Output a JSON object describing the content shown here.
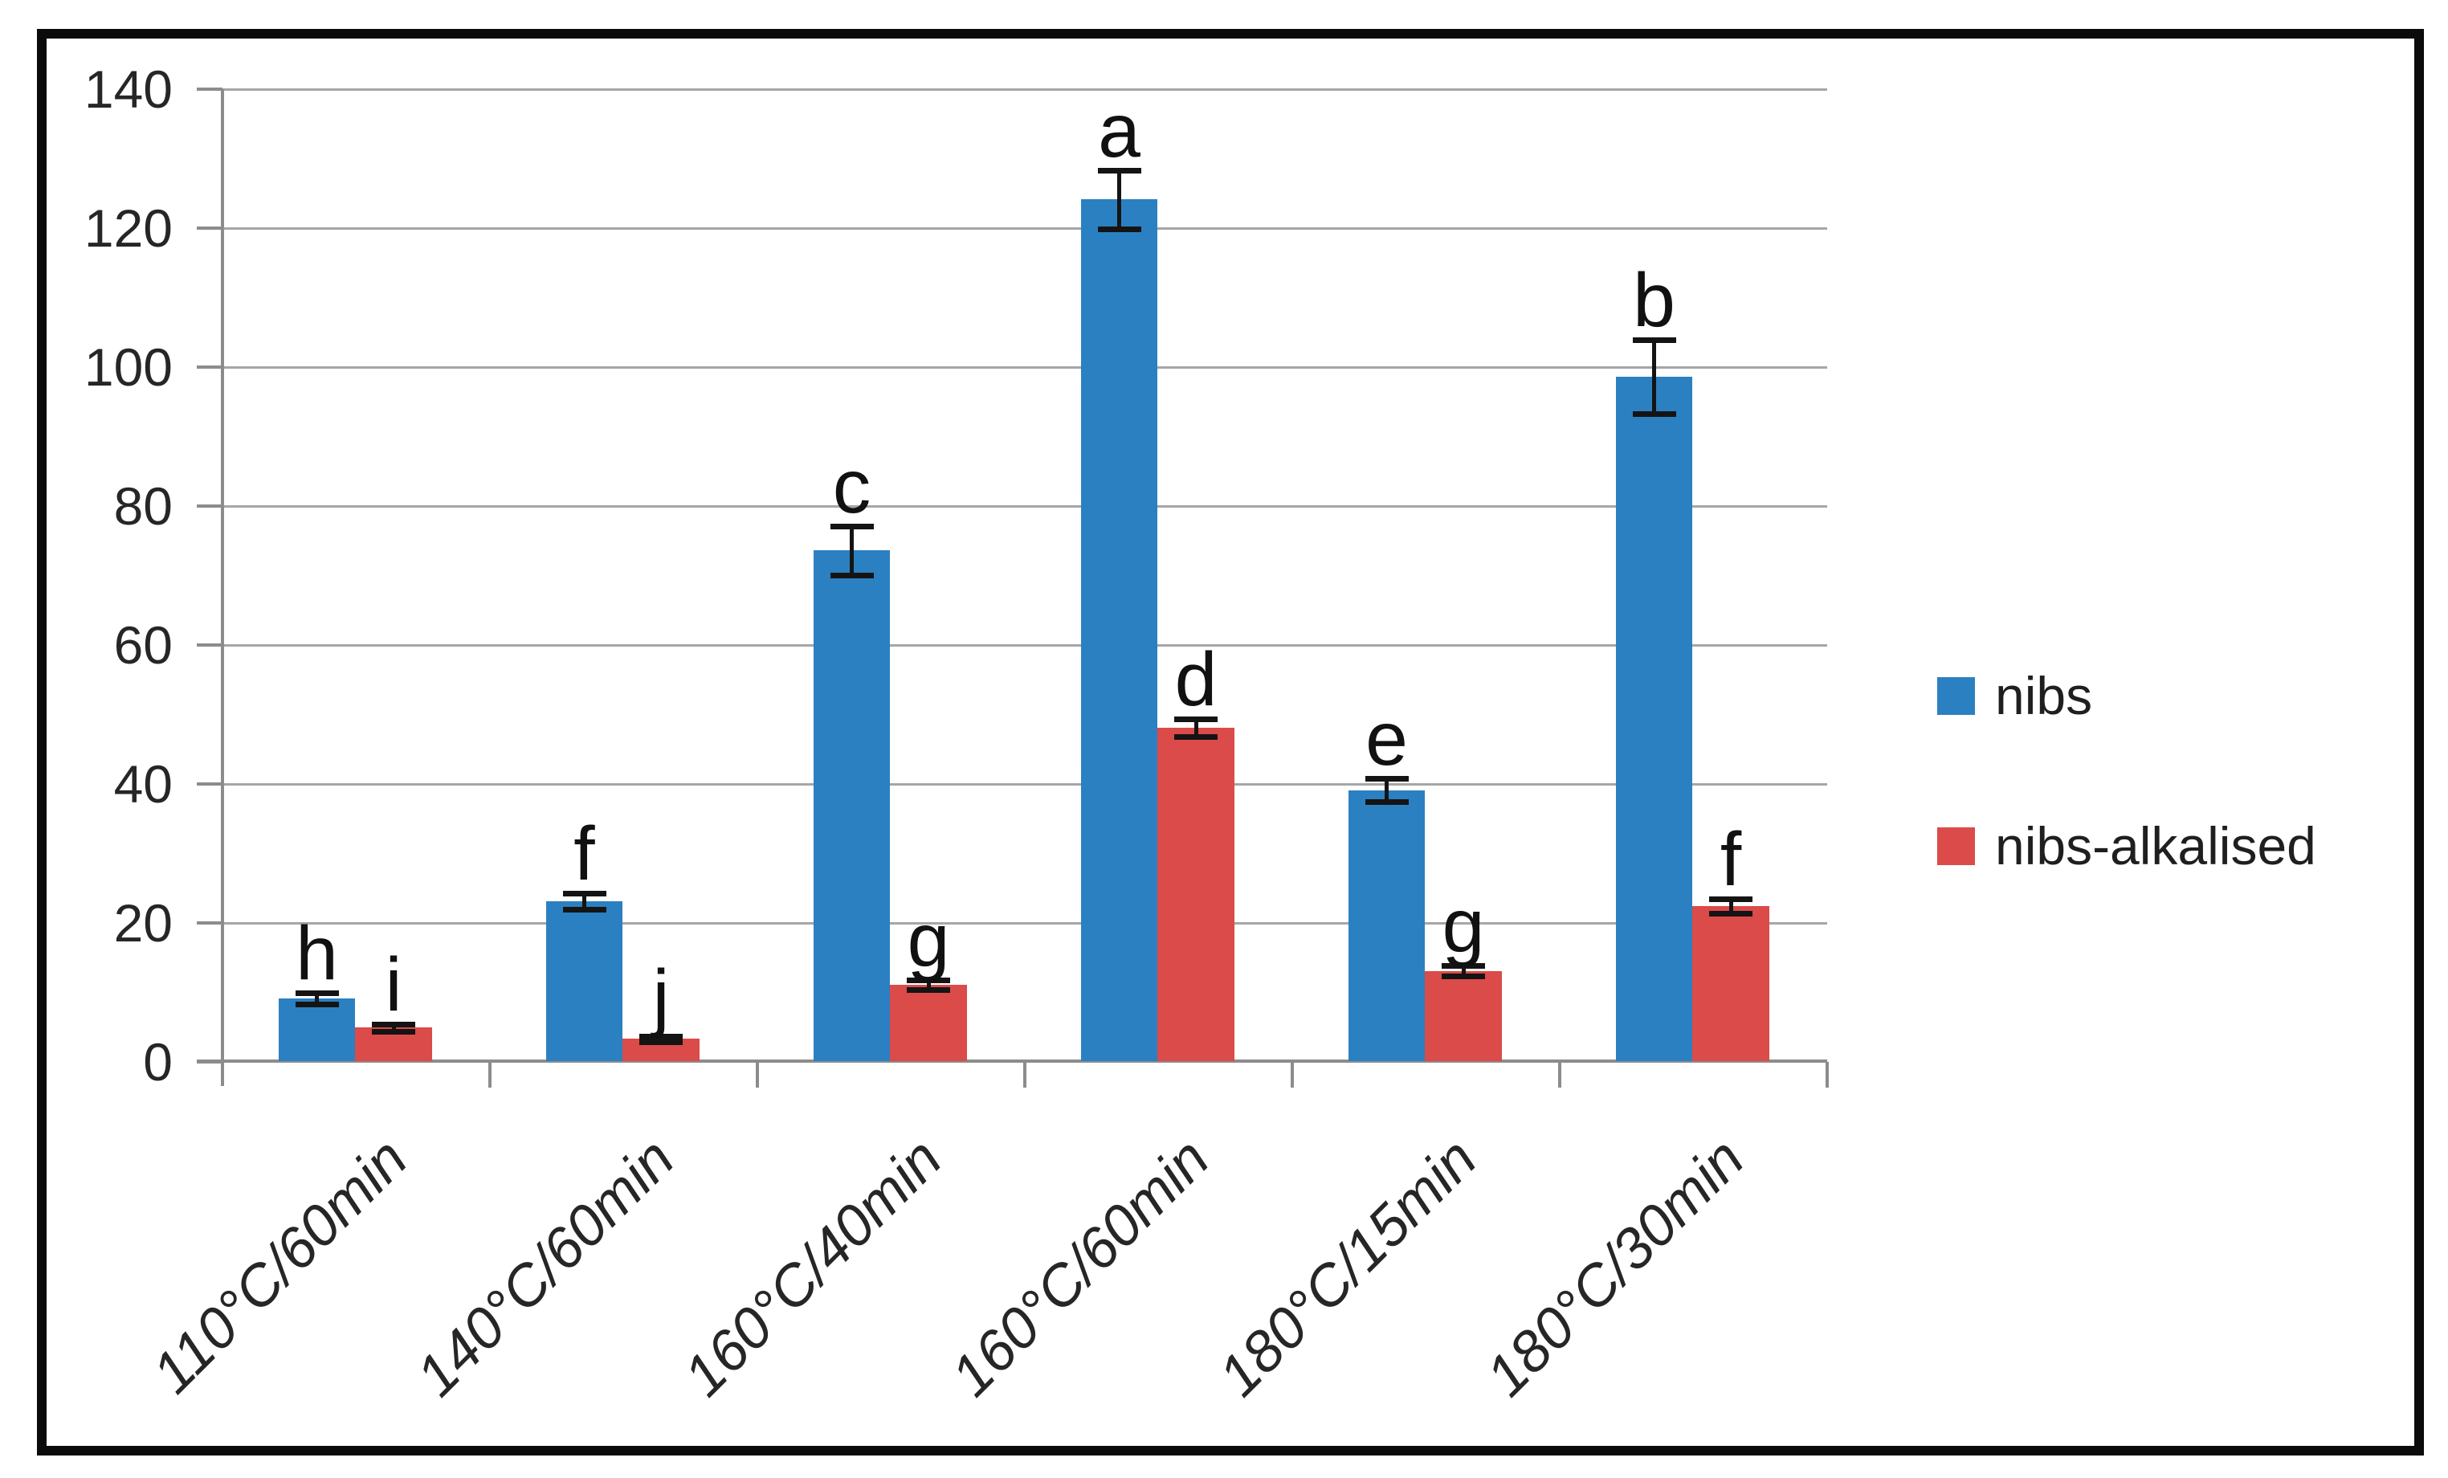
{
  "chart_data": {
    "type": "bar",
    "title": "",
    "xlabel": "",
    "ylabel": "",
    "categories": [
      "110°C/60min",
      "140°C/60min",
      "160°C/40min",
      "160°C/60min",
      "180°C/15min",
      "180°C/30min"
    ],
    "series": [
      {
        "name": "nibs",
        "color": "#2b80c2",
        "values": [
          9,
          23,
          73.5,
          124,
          39,
          98.5
        ],
        "errors": [
          0.8,
          1.2,
          3.5,
          4.2,
          1.7,
          5.3
        ],
        "letters": [
          "h",
          "f",
          "c",
          "a",
          "e",
          "b"
        ]
      },
      {
        "name": "nibs-alkalised",
        "color": "#db4b49",
        "values": [
          4.8,
          3.2,
          11,
          48,
          13,
          22.3
        ],
        "errors": [
          0.5,
          0.4,
          0.7,
          1.3,
          0.8,
          1.0
        ],
        "letters": [
          "i",
          "j",
          "g",
          "d",
          "g",
          "f"
        ]
      }
    ],
    "ylim": [
      0,
      140
    ],
    "y_ticks": [
      0,
      20,
      40,
      60,
      80,
      100,
      120,
      140
    ],
    "grid": true,
    "error_bars": true,
    "legend_position": "right"
  },
  "colors": {
    "grid": "#a6a6a6",
    "axis": "#8c8c8c",
    "error_bar": "#141414",
    "text": "#262626",
    "frame": "#0b0b0b",
    "background": "#ffffff"
  }
}
